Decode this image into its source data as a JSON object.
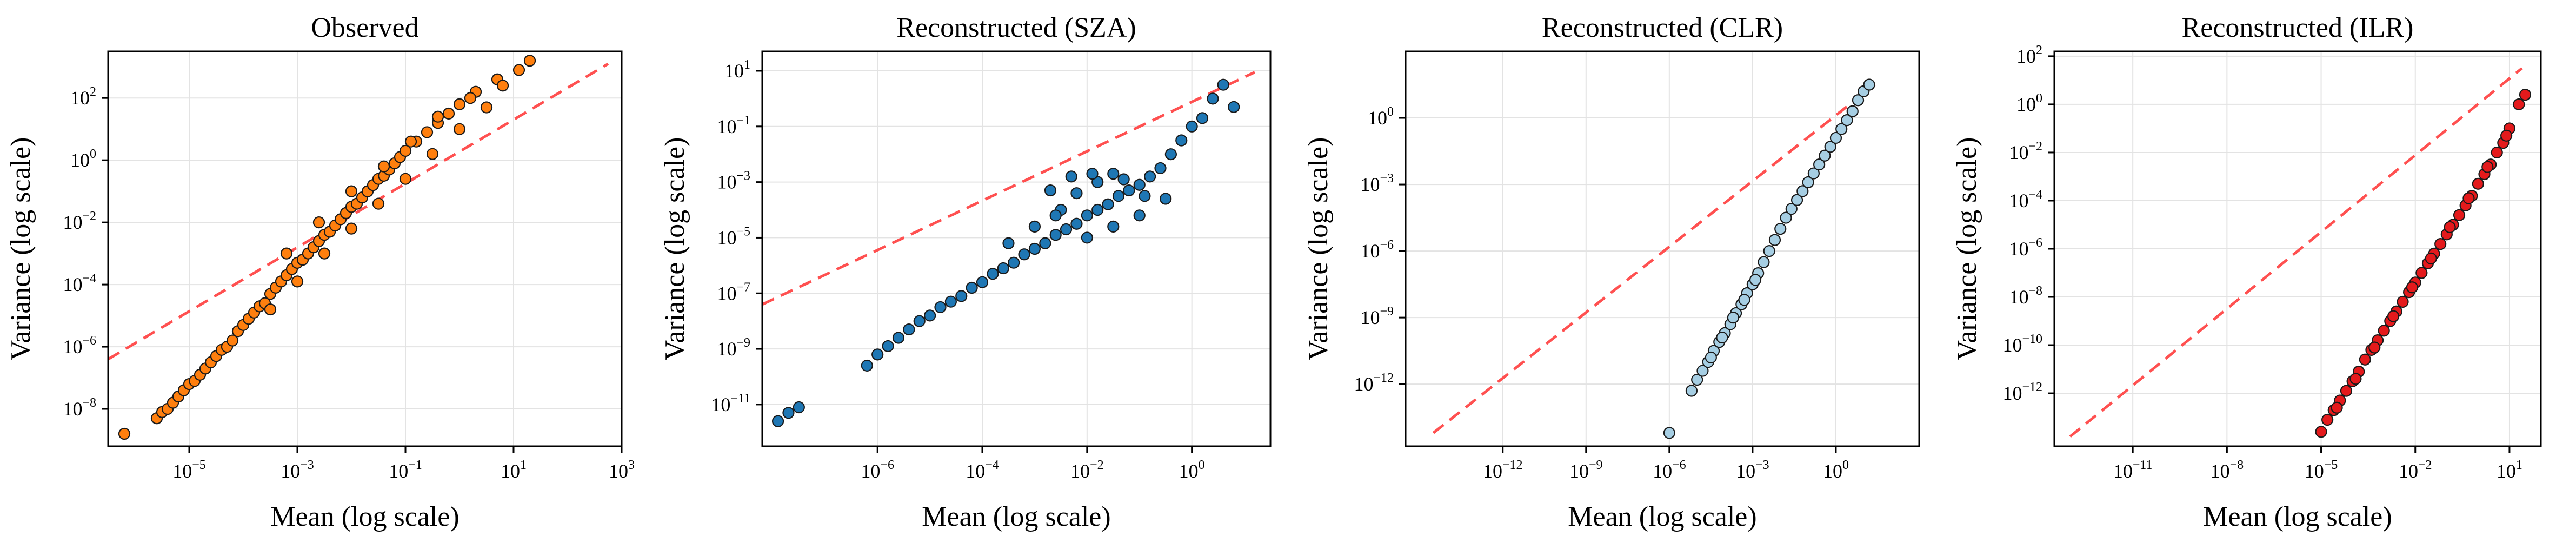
{
  "chart_data": [
    {
      "type": "scatter",
      "title": "Observed",
      "xlabel": "Mean (log scale)",
      "ylabel": "Variance (log scale)",
      "x_scale": "log",
      "y_scale": "log",
      "xlim_log10": [
        -6.5,
        3
      ],
      "ylim_log10": [
        -9.2,
        3.5
      ],
      "x_ticks_log10": [
        -5,
        -3,
        -1,
        1,
        3
      ],
      "y_ticks_log10": [
        -8,
        -6,
        -4,
        -2,
        0,
        2
      ],
      "grid": true,
      "point_color": "#ff7f0e",
      "reference_line": {
        "style": "dashed",
        "color": "#ff5050",
        "from_log10": [
          -6.5,
          -6.4
        ],
        "to_log10": [
          2.75,
          3.1
        ]
      },
      "series": [
        {
          "points_log10": [
            [
              -6.2,
              -8.8
            ],
            [
              -5.6,
              -8.3
            ],
            [
              -5.5,
              -8.1
            ],
            [
              -5.4,
              -8.0
            ],
            [
              -5.3,
              -7.8
            ],
            [
              -5.2,
              -7.6
            ],
            [
              -5.1,
              -7.4
            ],
            [
              -5.0,
              -7.2
            ],
            [
              -4.9,
              -7.1
            ],
            [
              -4.8,
              -6.9
            ],
            [
              -4.7,
              -6.7
            ],
            [
              -4.6,
              -6.5
            ],
            [
              -4.5,
              -6.3
            ],
            [
              -4.4,
              -6.1
            ],
            [
              -4.3,
              -6.0
            ],
            [
              -4.2,
              -5.8
            ],
            [
              -4.1,
              -5.5
            ],
            [
              -4.0,
              -5.3
            ],
            [
              -3.9,
              -5.1
            ],
            [
              -3.8,
              -4.9
            ],
            [
              -3.7,
              -4.7
            ],
            [
              -3.6,
              -4.6
            ],
            [
              -3.5,
              -4.3
            ],
            [
              -3.4,
              -4.1
            ],
            [
              -3.3,
              -3.9
            ],
            [
              -3.2,
              -3.7
            ],
            [
              -3.1,
              -3.5
            ],
            [
              -3.0,
              -3.3
            ],
            [
              -2.9,
              -3.2
            ],
            [
              -2.8,
              -3.0
            ],
            [
              -2.7,
              -2.8
            ],
            [
              -2.6,
              -2.6
            ],
            [
              -2.5,
              -2.4
            ],
            [
              -2.4,
              -2.3
            ],
            [
              -2.3,
              -2.1
            ],
            [
              -2.2,
              -1.9
            ],
            [
              -2.1,
              -1.7
            ],
            [
              -2.0,
              -1.5
            ],
            [
              -1.9,
              -1.4
            ],
            [
              -1.8,
              -1.2
            ],
            [
              -1.7,
              -1.0
            ],
            [
              -1.6,
              -0.8
            ],
            [
              -1.5,
              -0.6
            ],
            [
              -1.4,
              -0.5
            ],
            [
              -1.3,
              -0.3
            ],
            [
              -1.2,
              -0.1
            ],
            [
              -1.1,
              0.1
            ],
            [
              -1.0,
              0.3
            ],
            [
              -0.8,
              0.6
            ],
            [
              -0.6,
              0.9
            ],
            [
              -0.4,
              1.2
            ],
            [
              -0.2,
              1.5
            ],
            [
              0.0,
              1.8
            ],
            [
              0.3,
              2.2
            ],
            [
              0.7,
              2.6
            ],
            [
              1.3,
              3.2
            ],
            [
              -3.5,
              -4.8
            ],
            [
              -3.0,
              -3.9
            ],
            [
              -2.5,
              -3.0
            ],
            [
              -2.0,
              -2.2
            ],
            [
              -1.5,
              -1.4
            ],
            [
              -1.0,
              -0.6
            ],
            [
              -0.5,
              0.2
            ],
            [
              0.0,
              1.0
            ],
            [
              0.5,
              1.7
            ],
            [
              -3.2,
              -3.0
            ],
            [
              -2.6,
              -2.0
            ],
            [
              -2.0,
              -1.0
            ],
            [
              -1.4,
              -0.2
            ],
            [
              -0.9,
              0.6
            ],
            [
              -0.4,
              1.4
            ],
            [
              0.2,
              2.0
            ],
            [
              0.8,
              2.4
            ],
            [
              1.1,
              2.9
            ]
          ]
        }
      ]
    },
    {
      "type": "scatter",
      "title": "Reconstructed (SZA)",
      "xlabel": "Mean (log scale)",
      "ylabel": "Variance (log scale)",
      "x_scale": "log",
      "y_scale": "log",
      "xlim_log10": [
        -8.2,
        1.5
      ],
      "ylim_log10": [
        -12.5,
        1.7
      ],
      "x_ticks_log10": [
        -6,
        -4,
        -2,
        0
      ],
      "y_ticks_log10": [
        -11,
        -9,
        -7,
        -5,
        -3,
        -1,
        1
      ],
      "grid": true,
      "point_color": "#1f77b4",
      "reference_line": {
        "style": "dashed",
        "color": "#ff5050",
        "from_log10": [
          -8.2,
          -7.4
        ],
        "to_log10": [
          1.2,
          0.95
        ]
      },
      "series": [
        {
          "points_log10": [
            [
              -7.9,
              -11.6
            ],
            [
              -7.7,
              -11.3
            ],
            [
              -7.5,
              -11.1
            ],
            [
              -6.2,
              -9.6
            ],
            [
              -6.0,
              -9.2
            ],
            [
              -5.8,
              -8.9
            ],
            [
              -5.6,
              -8.6
            ],
            [
              -5.4,
              -8.3
            ],
            [
              -5.2,
              -8.0
            ],
            [
              -5.0,
              -7.8
            ],
            [
              -4.8,
              -7.5
            ],
            [
              -4.6,
              -7.3
            ],
            [
              -4.4,
              -7.1
            ],
            [
              -4.2,
              -6.8
            ],
            [
              -4.0,
              -6.6
            ],
            [
              -3.8,
              -6.3
            ],
            [
              -3.6,
              -6.1
            ],
            [
              -3.4,
              -5.9
            ],
            [
              -3.2,
              -5.6
            ],
            [
              -3.0,
              -5.4
            ],
            [
              -2.8,
              -5.2
            ],
            [
              -2.6,
              -4.9
            ],
            [
              -2.4,
              -4.7
            ],
            [
              -2.2,
              -4.5
            ],
            [
              -2.0,
              -4.2
            ],
            [
              -1.8,
              -4.0
            ],
            [
              -1.6,
              -3.8
            ],
            [
              -1.4,
              -3.5
            ],
            [
              -1.2,
              -3.3
            ],
            [
              -1.0,
              -3.1
            ],
            [
              -0.8,
              -2.8
            ],
            [
              -0.6,
              -2.5
            ],
            [
              -0.4,
              -2.0
            ],
            [
              -0.2,
              -1.5
            ],
            [
              0.0,
              -1.0
            ],
            [
              0.2,
              -0.7
            ],
            [
              0.4,
              0.0
            ],
            [
              0.6,
              0.5
            ],
            [
              0.8,
              -0.3
            ],
            [
              -3.5,
              -5.2
            ],
            [
              -3.0,
              -4.6
            ],
            [
              -2.5,
              -4.0
            ],
            [
              -2.2,
              -3.4
            ],
            [
              -1.8,
              -3.0
            ],
            [
              -1.5,
              -2.7
            ],
            [
              -2.6,
              -4.2
            ],
            [
              -2.0,
              -5.0
            ],
            [
              -1.5,
              -4.6
            ],
            [
              -1.0,
              -4.2
            ],
            [
              -0.5,
              -3.6
            ],
            [
              -2.7,
              -3.3
            ],
            [
              -2.3,
              -2.8
            ],
            [
              -1.9,
              -2.7
            ],
            [
              -1.3,
              -2.9
            ],
            [
              -0.9,
              -3.5
            ]
          ]
        }
      ]
    },
    {
      "type": "scatter",
      "title": "Reconstructed (CLR)",
      "xlabel": "Mean (log scale)",
      "ylabel": "Variance (log scale)",
      "x_scale": "log",
      "y_scale": "log",
      "xlim_log10": [
        -15.5,
        3
      ],
      "ylim_log10": [
        -14.8,
        3
      ],
      "x_ticks_log10": [
        -12,
        -9,
        -6,
        -3,
        0
      ],
      "y_ticks_log10": [
        -12,
        -9,
        -6,
        -3,
        0
      ],
      "grid": true,
      "point_color": "#a6cee3",
      "reference_line": {
        "style": "dashed",
        "color": "#ff5050",
        "from_log10": [
          -14.5,
          -14.2
        ],
        "to_log10": [
          1.4,
          1.5
        ]
      },
      "series": [
        {
          "points_log10": [
            [
              -6.0,
              -14.2
            ],
            [
              -5.2,
              -12.3
            ],
            [
              -5.0,
              -11.8
            ],
            [
              -4.8,
              -11.4
            ],
            [
              -4.6,
              -11.0
            ],
            [
              -4.4,
              -10.5
            ],
            [
              -4.2,
              -10.1
            ],
            [
              -4.0,
              -9.7
            ],
            [
              -3.8,
              -9.3
            ],
            [
              -3.6,
              -8.8
            ],
            [
              -3.4,
              -8.4
            ],
            [
              -3.2,
              -7.9
            ],
            [
              -3.0,
              -7.5
            ],
            [
              -2.8,
              -7.0
            ],
            [
              -2.6,
              -6.5
            ],
            [
              -2.4,
              -6.0
            ],
            [
              -2.2,
              -5.5
            ],
            [
              -2.0,
              -5.0
            ],
            [
              -1.8,
              -4.5
            ],
            [
              -1.6,
              -4.1
            ],
            [
              -1.4,
              -3.7
            ],
            [
              -1.2,
              -3.3
            ],
            [
              -1.0,
              -2.9
            ],
            [
              -0.8,
              -2.5
            ],
            [
              -0.6,
              -2.1
            ],
            [
              -0.4,
              -1.7
            ],
            [
              -0.2,
              -1.3
            ],
            [
              0.0,
              -0.9
            ],
            [
              0.2,
              -0.5
            ],
            [
              0.4,
              -0.1
            ],
            [
              0.6,
              0.3
            ],
            [
              0.8,
              0.8
            ],
            [
              1.0,
              1.2
            ],
            [
              1.2,
              1.5
            ],
            [
              -4.5,
              -10.8
            ],
            [
              -4.1,
              -9.9
            ],
            [
              -3.7,
              -9.0
            ],
            [
              -3.3,
              -8.2
            ],
            [
              -2.9,
              -7.3
            ]
          ]
        }
      ]
    },
    {
      "type": "scatter",
      "title": "Reconstructed (ILR)",
      "xlabel": "Mean (log scale)",
      "ylabel": "Variance (log scale)",
      "x_scale": "log",
      "y_scale": "log",
      "xlim_log10": [
        -13.5,
        2
      ],
      "ylim_log10": [
        -14.2,
        2.2
      ],
      "x_ticks_log10": [
        -11,
        -8,
        -5,
        -2,
        1
      ],
      "y_ticks_log10": [
        -12,
        -10,
        -8,
        -6,
        -4,
        -2,
        0,
        2
      ],
      "grid": true,
      "point_color": "#e41a1c",
      "reference_line": {
        "style": "dashed",
        "color": "#ff5050",
        "from_log10": [
          -13.0,
          -13.8
        ],
        "to_log10": [
          1.4,
          1.5
        ]
      },
      "series": [
        {
          "points_log10": [
            [
              -5.0,
              -13.6
            ],
            [
              -4.8,
              -13.1
            ],
            [
              -4.6,
              -12.7
            ],
            [
              -4.4,
              -12.3
            ],
            [
              -4.2,
              -11.9
            ],
            [
              -4.0,
              -11.5
            ],
            [
              -3.8,
              -11.1
            ],
            [
              -3.6,
              -10.6
            ],
            [
              -3.4,
              -10.2
            ],
            [
              -3.2,
              -9.8
            ],
            [
              -3.0,
              -9.4
            ],
            [
              -2.8,
              -9.0
            ],
            [
              -2.6,
              -8.6
            ],
            [
              -2.4,
              -8.2
            ],
            [
              -2.2,
              -7.8
            ],
            [
              -2.0,
              -7.4
            ],
            [
              -1.8,
              -7.0
            ],
            [
              -1.6,
              -6.6
            ],
            [
              -1.4,
              -6.2
            ],
            [
              -1.2,
              -5.8
            ],
            [
              -1.0,
              -5.4
            ],
            [
              -0.8,
              -5.0
            ],
            [
              -0.6,
              -4.6
            ],
            [
              -0.4,
              -4.2
            ],
            [
              -0.2,
              -3.8
            ],
            [
              0.0,
              -3.3
            ],
            [
              0.2,
              -2.9
            ],
            [
              0.4,
              -2.5
            ],
            [
              0.6,
              -2.0
            ],
            [
              0.8,
              -1.6
            ],
            [
              1.0,
              -1.0
            ],
            [
              1.3,
              0.0
            ],
            [
              1.5,
              0.4
            ],
            [
              -4.5,
              -12.6
            ],
            [
              -3.9,
              -11.4
            ],
            [
              -3.3,
              -10.1
            ],
            [
              -2.7,
              -8.8
            ],
            [
              -2.1,
              -7.6
            ],
            [
              -1.5,
              -6.4
            ],
            [
              -0.9,
              -5.1
            ],
            [
              -0.3,
              -3.9
            ],
            [
              0.3,
              -2.6
            ],
            [
              0.9,
              -1.3
            ]
          ]
        }
      ]
    }
  ]
}
